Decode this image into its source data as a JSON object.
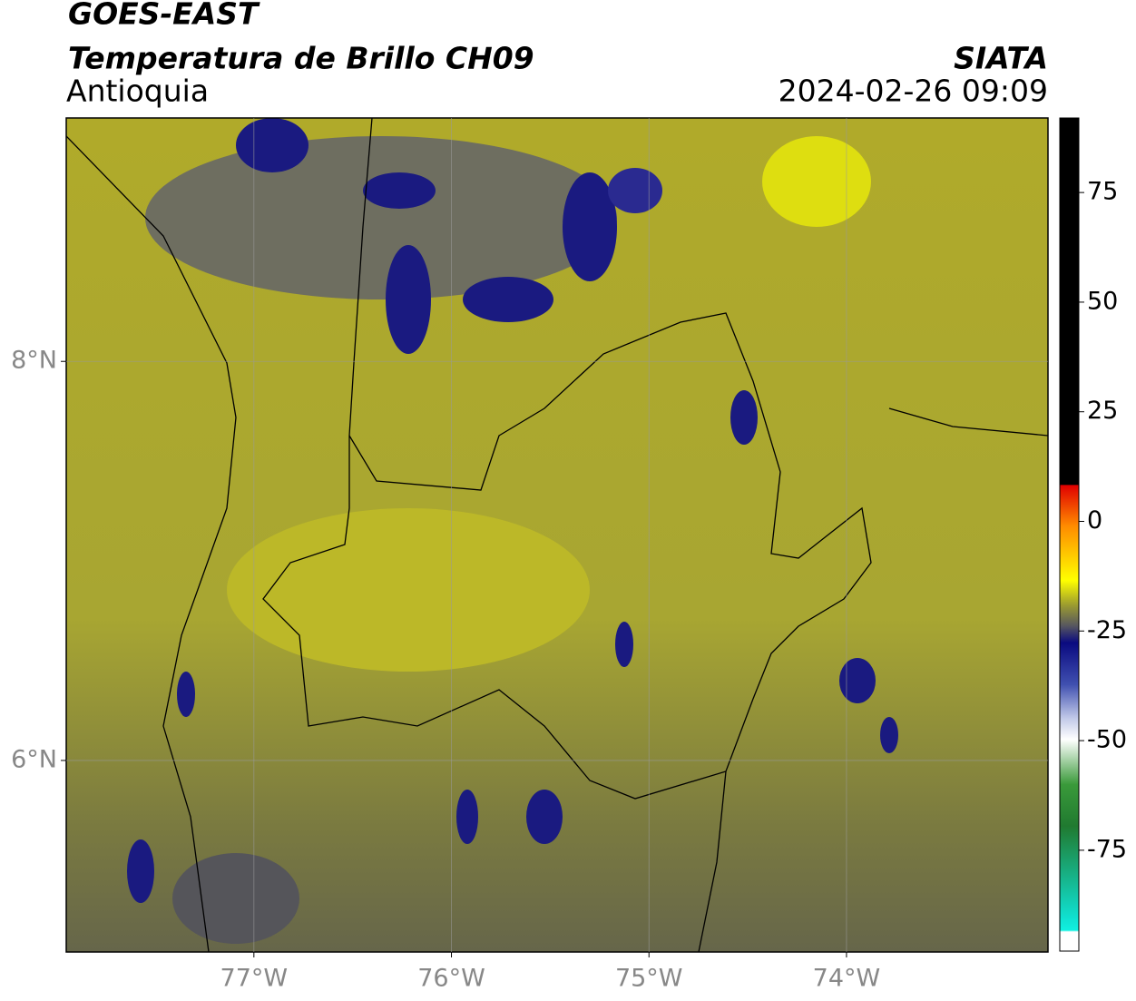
{
  "header": {
    "title": "GOES-EAST",
    "subtitle": "Temperatura de Brillo CH09",
    "region": "Antioquia",
    "source": "SIATA",
    "timestamp": "2024-02-26 09:09"
  },
  "map": {
    "xlim": [
      -77.95,
      -72.98
    ],
    "ylim": [
      5.04,
      9.22
    ],
    "xticks": [
      {
        "value": -77,
        "label": "77°W"
      },
      {
        "value": -76,
        "label": "76°W"
      },
      {
        "value": -75,
        "label": "75°W"
      },
      {
        "value": -74,
        "label": "74°W"
      }
    ],
    "yticks": [
      {
        "value": 6,
        "label": "6°N"
      },
      {
        "value": 8,
        "label": "8°N"
      }
    ],
    "grid": true
  },
  "colorbar": {
    "lim": [
      -98,
      92
    ],
    "ticks": [
      75,
      50,
      25,
      0,
      -25,
      -50,
      -75
    ]
  }
}
